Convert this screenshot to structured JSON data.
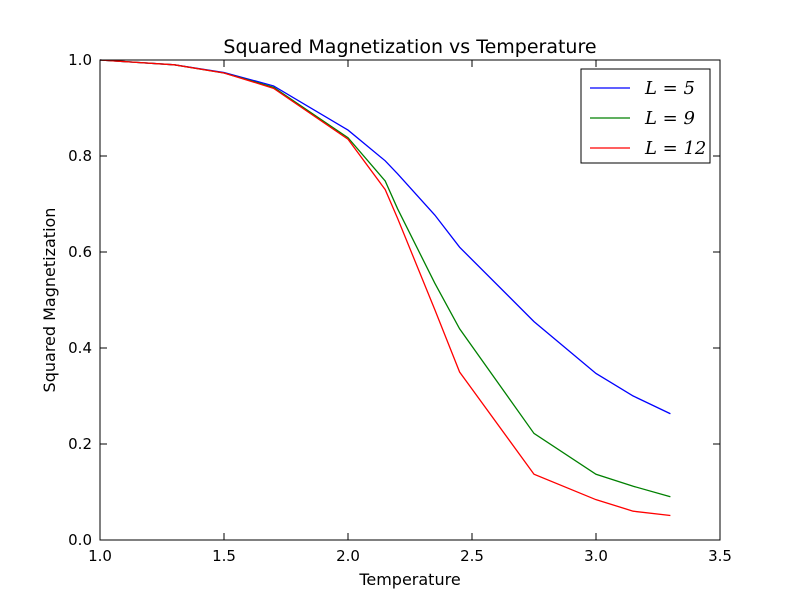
{
  "chart_data": {
    "type": "line",
    "title": "Squared Magnetization vs Temperature",
    "xlabel": "Temperature",
    "ylabel": "Squared Magnetization",
    "xlim": [
      1.0,
      3.5
    ],
    "ylim": [
      0.0,
      1.0
    ],
    "xticks": [
      "1.0",
      "1.5",
      "2.0",
      "2.5",
      "3.0",
      "3.5"
    ],
    "yticks": [
      "0.0",
      "0.2",
      "0.4",
      "0.6",
      "0.8",
      "1.0"
    ],
    "grid": false,
    "legend_position": "top-right",
    "series": [
      {
        "name": "L = 5",
        "color": "#0000ff",
        "x": [
          1.0,
          1.3,
          1.5,
          1.7,
          2.0,
          2.15,
          2.2,
          2.35,
          2.45,
          2.75,
          3.0,
          3.15,
          3.3
        ],
        "y": [
          1.0,
          0.99,
          0.974,
          0.946,
          0.854,
          0.79,
          0.763,
          0.677,
          0.61,
          0.455,
          0.347,
          0.3,
          0.263
        ]
      },
      {
        "name": "L = 9",
        "color": "#008000",
        "x": [
          1.0,
          1.3,
          1.5,
          1.7,
          2.0,
          2.15,
          2.2,
          2.35,
          2.45,
          2.75,
          3.0,
          3.15,
          3.3
        ],
        "y": [
          1.0,
          0.99,
          0.973,
          0.943,
          0.838,
          0.748,
          0.69,
          0.535,
          0.44,
          0.222,
          0.137,
          0.112,
          0.09
        ]
      },
      {
        "name": "L = 12",
        "color": "#ff0000",
        "x": [
          1.0,
          1.3,
          1.5,
          1.7,
          2.0,
          2.15,
          2.2,
          2.35,
          2.45,
          2.75,
          3.0,
          3.15,
          3.3
        ],
        "y": [
          1.0,
          0.99,
          0.973,
          0.941,
          0.835,
          0.73,
          0.67,
          0.48,
          0.35,
          0.137,
          0.084,
          0.06,
          0.051
        ]
      }
    ]
  }
}
